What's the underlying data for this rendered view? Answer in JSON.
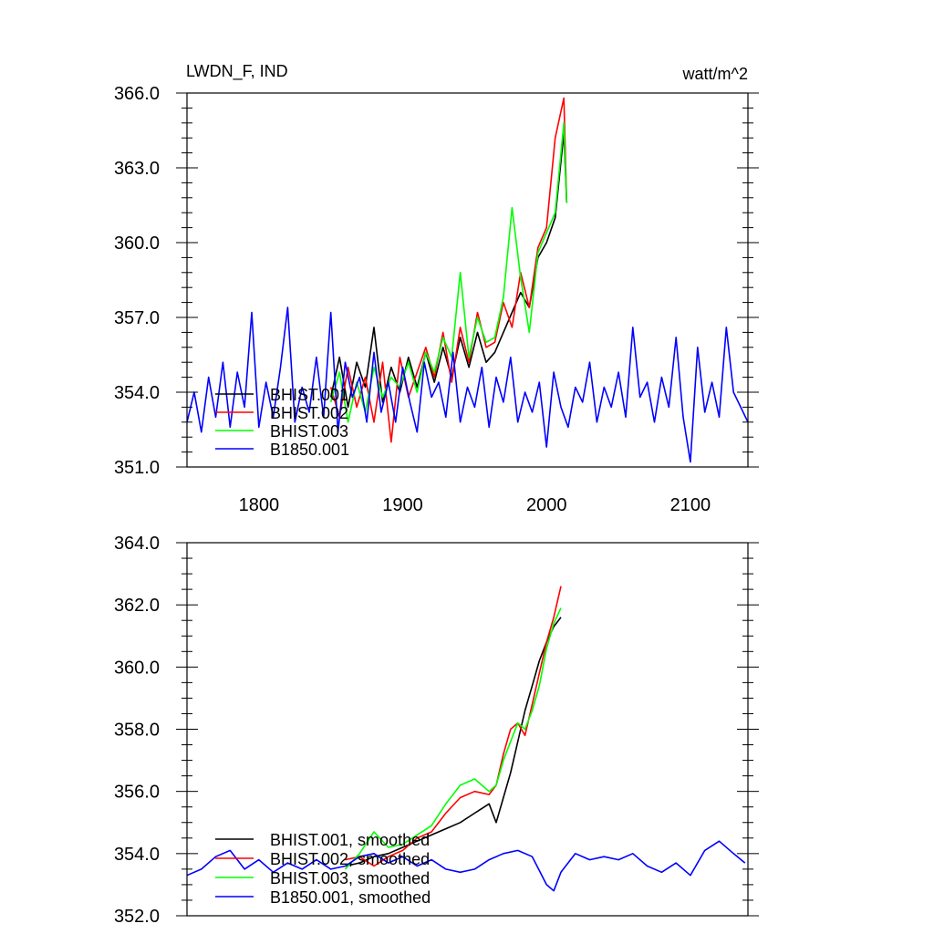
{
  "chart_data": [
    {
      "type": "line",
      "title": "LWDN_F, IND",
      "units": "watt/m^2",
      "xlim": [
        1750,
        2140
      ],
      "ylim": [
        351.0,
        366.0
      ],
      "xticks": [
        1800,
        1900,
        2000,
        2100
      ],
      "yticks": [
        "351.0",
        "354.0",
        "357.0",
        "360.0",
        "363.0",
        "366.0"
      ],
      "legend_position": "bottom-left",
      "series": [
        {
          "name": "BHIST.001",
          "color": "#000000",
          "x": [
            1850,
            1856,
            1862,
            1868,
            1874,
            1880,
            1886,
            1892,
            1898,
            1904,
            1910,
            1916,
            1922,
            1928,
            1934,
            1940,
            1946,
            1952,
            1958,
            1964,
            1970,
            1976,
            1982,
            1988,
            1994,
            2000,
            2006,
            2012,
            2014
          ],
          "y": [
            353.8,
            355.4,
            353.4,
            355.2,
            354.2,
            356.6,
            353.6,
            355.0,
            354.0,
            355.4,
            354.2,
            355.6,
            354.4,
            355.8,
            354.6,
            356.2,
            355.0,
            356.4,
            355.2,
            355.6,
            356.4,
            357.2,
            358.0,
            357.4,
            359.4,
            360.0,
            361.0,
            364.4,
            361.6
          ]
        },
        {
          "name": "BHIST.002",
          "color": "#ff0000",
          "x": [
            1850,
            1856,
            1862,
            1868,
            1874,
            1880,
            1886,
            1892,
            1898,
            1904,
            1910,
            1916,
            1922,
            1928,
            1934,
            1940,
            1946,
            1952,
            1958,
            1964,
            1970,
            1976,
            1982,
            1988,
            1994,
            2000,
            2006,
            2012,
            2014
          ],
          "y": [
            354.2,
            353.0,
            355.0,
            353.4,
            354.6,
            352.8,
            355.2,
            352.0,
            355.4,
            353.8,
            354.8,
            355.8,
            354.6,
            356.4,
            354.4,
            356.6,
            355.2,
            357.2,
            355.8,
            356.0,
            357.6,
            356.6,
            358.8,
            357.4,
            359.8,
            360.6,
            364.2,
            365.8,
            361.6
          ]
        },
        {
          "name": "BHIST.003",
          "color": "#00ff00",
          "x": [
            1850,
            1856,
            1862,
            1868,
            1874,
            1880,
            1886,
            1892,
            1898,
            1904,
            1910,
            1916,
            1922,
            1928,
            1934,
            1940,
            1946,
            1952,
            1958,
            1964,
            1970,
            1976,
            1982,
            1988,
            1994,
            2000,
            2006,
            2012,
            2014
          ],
          "y": [
            353.6,
            354.8,
            352.8,
            354.4,
            353.2,
            355.0,
            353.8,
            354.6,
            354.2,
            355.2,
            354.0,
            355.6,
            354.8,
            356.2,
            355.4,
            358.8,
            355.4,
            357.0,
            356.0,
            356.2,
            357.8,
            361.4,
            358.6,
            356.4,
            359.6,
            360.4,
            361.2,
            364.8,
            361.6
          ]
        },
        {
          "name": "B1850.001",
          "color": "#0000ff",
          "x": [
            1750,
            1755,
            1760,
            1765,
            1770,
            1775,
            1780,
            1785,
            1790,
            1795,
            1800,
            1805,
            1810,
            1815,
            1820,
            1825,
            1830,
            1835,
            1840,
            1845,
            1850,
            1855,
            1860,
            1865,
            1870,
            1875,
            1880,
            1885,
            1890,
            1895,
            1900,
            1905,
            1910,
            1915,
            1920,
            1925,
            1930,
            1935,
            1940,
            1945,
            1950,
            1955,
            1960,
            1965,
            1970,
            1975,
            1980,
            1985,
            1990,
            1995,
            2000,
            2005,
            2010,
            2015,
            2020,
            2025,
            2030,
            2035,
            2040,
            2045,
            2050,
            2055,
            2060,
            2065,
            2070,
            2075,
            2080,
            2085,
            2090,
            2095,
            2100,
            2105,
            2110,
            2115,
            2120,
            2125,
            2130,
            2135,
            2140
          ],
          "y": [
            352.8,
            354.0,
            352.4,
            354.6,
            353.0,
            355.2,
            352.6,
            354.8,
            353.4,
            357.2,
            352.6,
            354.4,
            353.0,
            355.0,
            357.4,
            352.8,
            354.2,
            353.2,
            355.4,
            353.0,
            357.2,
            352.4,
            355.2,
            353.8,
            354.6,
            352.8,
            355.6,
            353.2,
            354.4,
            352.8,
            355.0,
            353.6,
            352.4,
            355.2,
            353.8,
            354.4,
            353.0,
            355.6,
            352.8,
            354.2,
            353.4,
            355.0,
            352.6,
            354.6,
            353.6,
            355.4,
            352.8,
            354.0,
            353.2,
            354.4,
            351.8,
            354.8,
            353.4,
            352.6,
            354.2,
            353.6,
            355.2,
            352.8,
            354.2,
            353.4,
            354.8,
            353.0,
            356.6,
            353.8,
            354.4,
            352.8,
            354.6,
            353.4,
            356.2,
            353.0,
            351.2,
            355.8,
            353.2,
            354.4,
            353.0,
            356.6,
            354.0,
            353.4,
            352.8
          ]
        }
      ]
    },
    {
      "type": "line",
      "title": "",
      "xlim": [
        1750,
        2140
      ],
      "ylim": [
        352.0,
        364.0
      ],
      "yticks": [
        "352.0",
        "354.0",
        "356.0",
        "358.0",
        "360.0",
        "362.0",
        "364.0"
      ],
      "legend_position": "bottom-left",
      "series": [
        {
          "name": "BHIST.001, smoothed",
          "color": "#000000",
          "x": [
            1860,
            1870,
            1880,
            1890,
            1900,
            1910,
            1920,
            1930,
            1940,
            1950,
            1960,
            1965,
            1970,
            1975,
            1980,
            1985,
            1990,
            1995,
            2000,
            2005,
            2010
          ],
          "y": [
            353.6,
            353.7,
            353.9,
            354.0,
            354.2,
            354.4,
            354.6,
            354.8,
            355.0,
            355.3,
            355.6,
            355.0,
            355.8,
            356.6,
            357.6,
            358.6,
            359.4,
            360.2,
            360.8,
            361.3,
            361.6
          ]
        },
        {
          "name": "BHIST.002, smoothed",
          "color": "#ff0000",
          "x": [
            1860,
            1870,
            1880,
            1890,
            1900,
            1910,
            1920,
            1930,
            1940,
            1950,
            1960,
            1965,
            1970,
            1975,
            1980,
            1985,
            1990,
            1995,
            2000,
            2005,
            2010
          ],
          "y": [
            353.8,
            353.9,
            353.6,
            353.9,
            354.1,
            354.5,
            354.7,
            355.3,
            355.8,
            356.0,
            355.9,
            356.2,
            357.2,
            358.0,
            358.2,
            357.8,
            358.8,
            359.8,
            360.8,
            361.6,
            362.6
          ]
        },
        {
          "name": "BHIST.003, smoothed",
          "color": "#00ff00",
          "x": [
            1860,
            1870,
            1880,
            1890,
            1900,
            1910,
            1920,
            1930,
            1940,
            1950,
            1960,
            1965,
            1970,
            1975,
            1980,
            1985,
            1990,
            1995,
            2000,
            2005,
            2010
          ],
          "y": [
            353.5,
            354.0,
            354.7,
            354.2,
            354.3,
            354.6,
            354.9,
            355.6,
            356.2,
            356.4,
            356.0,
            356.2,
            357.0,
            357.6,
            358.2,
            358.0,
            358.6,
            359.4,
            360.6,
            361.4,
            361.9
          ]
        },
        {
          "name": "B1850.001, smoothed",
          "color": "#0000ff",
          "x": [
            1750,
            1760,
            1770,
            1780,
            1790,
            1800,
            1810,
            1820,
            1830,
            1840,
            1850,
            1860,
            1870,
            1880,
            1890,
            1900,
            1910,
            1920,
            1930,
            1940,
            1950,
            1960,
            1970,
            1980,
            1990,
            2000,
            2005,
            2010,
            2020,
            2030,
            2040,
            2050,
            2060,
            2070,
            2080,
            2090,
            2100,
            2110,
            2120,
            2130,
            2138
          ],
          "y": [
            353.3,
            353.5,
            353.9,
            354.1,
            353.5,
            353.8,
            353.4,
            353.7,
            353.5,
            353.8,
            353.5,
            353.6,
            353.9,
            354.0,
            353.7,
            353.9,
            353.6,
            353.8,
            353.5,
            353.4,
            353.5,
            353.8,
            354.0,
            354.1,
            353.9,
            353.0,
            352.8,
            353.4,
            354.0,
            353.8,
            353.9,
            353.8,
            354.0,
            353.6,
            353.4,
            353.7,
            353.3,
            354.1,
            354.4,
            354.0,
            353.7
          ]
        }
      ]
    }
  ]
}
